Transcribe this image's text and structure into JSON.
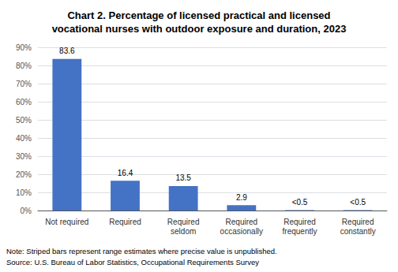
{
  "chart_data": {
    "type": "bar",
    "title": "Chart 2. Percentage of licensed practical and licensed\nvocational nurses with outdoor exposure and duration, 2023",
    "categories": [
      "Not required",
      "Required",
      "Required\nseldom",
      "Required\noccasionally",
      "Required\nfrequently",
      "Required\nconstantly"
    ],
    "values": [
      83.6,
      16.4,
      13.5,
      2.9,
      0.25,
      0.25
    ],
    "value_labels": [
      "83.6",
      "16.4",
      "13.5",
      "2.9",
      "<0.5",
      "<0.5"
    ],
    "data_labels": true,
    "color": "#4472C4",
    "ylim": [
      0,
      90
    ],
    "yticks": [
      {
        "value": 0,
        "label": "0%"
      },
      {
        "value": 10,
        "label": "10%"
      },
      {
        "value": 20,
        "label": "20%"
      },
      {
        "value": 30,
        "label": "30%"
      },
      {
        "value": 40,
        "label": "40%"
      },
      {
        "value": 50,
        "label": "50%"
      },
      {
        "value": 60,
        "label": "60%"
      },
      {
        "value": 70,
        "label": "70%"
      },
      {
        "value": 80,
        "label": "80%"
      },
      {
        "value": 90,
        "label": "90%"
      }
    ],
    "grid": true,
    "annotations": [
      "Note: Striped bars represent range estimates where precise value is unpublished.",
      "Source: U.S. Bureau of Labor Statistics, Occupational Requirements Survey"
    ]
  }
}
